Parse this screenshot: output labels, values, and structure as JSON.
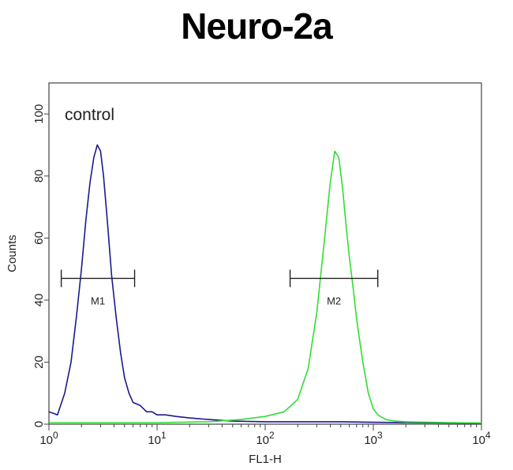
{
  "title": "Neuro-2a",
  "chart_data": {
    "type": "line",
    "title": "Neuro-2a",
    "xlabel": "FL1-H",
    "ylabel": "Counts",
    "x_scale": "log",
    "xlim": [
      1,
      10000
    ],
    "ylim": [
      0,
      110
    ],
    "x_ticks": [
      {
        "value": 1,
        "base": "10",
        "exp": "0"
      },
      {
        "value": 10,
        "base": "10",
        "exp": "1"
      },
      {
        "value": 100,
        "base": "10",
        "exp": "2"
      },
      {
        "value": 1000,
        "base": "10",
        "exp": "3"
      },
      {
        "value": 10000,
        "base": "10",
        "exp": "4"
      }
    ],
    "y_ticks": [
      0,
      20,
      40,
      60,
      80,
      100
    ],
    "grid": false,
    "annotation": "control",
    "series": [
      {
        "color": "#1a1a8c",
        "x": [
          1.0,
          1.2,
          1.4,
          1.6,
          1.8,
          2.0,
          2.2,
          2.4,
          2.6,
          2.8,
          3.0,
          3.2,
          3.5,
          3.8,
          4.2,
          4.6,
          5.0,
          5.5,
          6.0,
          7.0,
          8.0,
          9.0,
          10,
          12,
          15,
          20,
          30,
          50,
          100,
          200,
          300,
          500,
          1000,
          2000,
          5000,
          10000
        ],
        "y": [
          4,
          3,
          10,
          20,
          35,
          50,
          66,
          78,
          86,
          90,
          88,
          80,
          64,
          48,
          34,
          23,
          15,
          10,
          7,
          6,
          4,
          4,
          3,
          3,
          2.5,
          2,
          1.5,
          1,
          0.8,
          0.8,
          0.8,
          0.8,
          0.6,
          0.5,
          0.4,
          0.3
        ]
      },
      {
        "color": "#33dd33",
        "x": [
          1.0,
          10,
          30,
          60,
          100,
          150,
          200,
          250,
          300,
          350,
          400,
          440,
          480,
          520,
          560,
          600,
          650,
          700,
          800,
          900,
          1000,
          1100,
          1300,
          1600,
          2000,
          5000,
          10000
        ],
        "y": [
          0.5,
          0.5,
          0.8,
          1.5,
          2.5,
          4,
          8,
          18,
          36,
          58,
          78,
          88,
          86,
          76,
          64,
          54,
          44,
          34,
          20,
          10,
          5,
          3,
          1.5,
          1,
          0.8,
          0.5,
          0.4
        ]
      }
    ],
    "markers": [
      {
        "label": "M1",
        "x_start": 1.3,
        "x_end": 6.2,
        "y": 47
      },
      {
        "label": "M2",
        "x_start": 170,
        "x_end": 1100,
        "y": 47
      }
    ]
  }
}
